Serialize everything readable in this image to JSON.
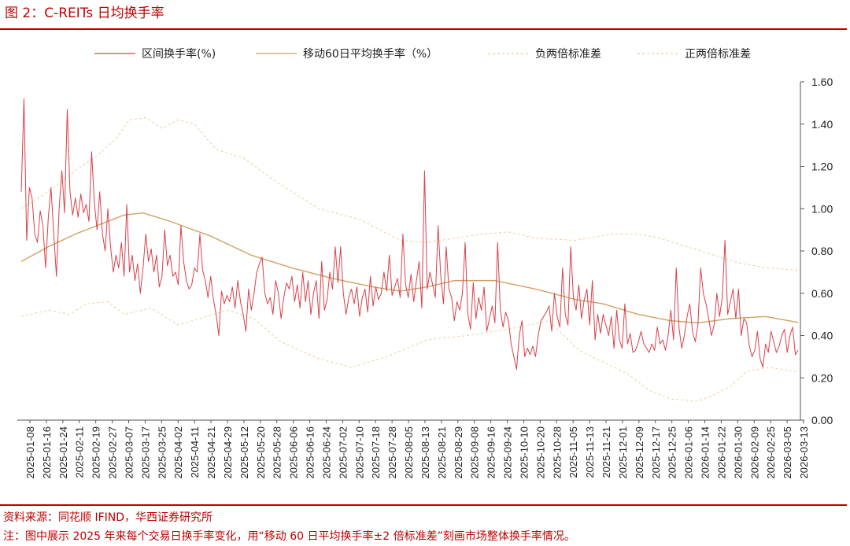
{
  "header": {
    "title": "图 2：C-REITs 日均换手率"
  },
  "footer": {
    "source": "资料来源：同花顺 IFIND，华西证券研究所",
    "note": "注：图中展示 2025 年来每个交易日换手率变化，用“移动 60 日平均换手率±2 倍标准差”刻画市场整体换手率情况。"
  },
  "colors": {
    "accent": "#c00000",
    "turnover": "#d9414a",
    "ma60": "#d1a062",
    "band": "#e8cf9e"
  },
  "chart_data": {
    "type": "line",
    "title": "",
    "xlabel": "",
    "ylabel": "",
    "ylim": [
      0,
      1.6
    ],
    "yticks": [
      "0.00",
      "0.20",
      "0.40",
      "0.60",
      "0.80",
      "1.00",
      "1.20",
      "1.40",
      "1.60"
    ],
    "grid": false,
    "legend_position": "top",
    "x_tick_labels": [
      "2025-01-08",
      "2025-01-16",
      "2025-01-24",
      "2025-02-11",
      "2025-02-19",
      "2025-02-27",
      "2025-03-07",
      "2025-03-17",
      "2025-03-25",
      "2025-04-02",
      "2025-04-11",
      "2025-04-21",
      "2025-04-29",
      "2025-05-12",
      "2025-05-20",
      "2025-05-28",
      "2025-06-06",
      "2025-06-16",
      "2025-06-24",
      "2025-07-02",
      "2025-07-10",
      "2025-07-18",
      "2025-07-28",
      "2025-08-05",
      "2025-08-13",
      "2025-08-21",
      "2025-08-29",
      "2025-09-08",
      "2025-09-16",
      "2025-09-24",
      "2025-10-10",
      "2025-10-20",
      "2025-10-28",
      "2025-11-05",
      "2025-11-13",
      "2025-11-21",
      "2025-12-01",
      "2025-12-09",
      "2025-12-17",
      "2025-12-25",
      "2026-01-06",
      "2026-01-14",
      "2026-01-22",
      "2026-01-30",
      "2026-02-09",
      "2026-02-25",
      "2026-03-05",
      "2026-03-13"
    ],
    "series": [
      {
        "name": "区间换手率(%)",
        "style": "solid",
        "values": [
          1.08,
          1.52,
          0.85,
          1.1,
          1.05,
          0.88,
          0.84,
          0.99,
          0.92,
          0.72,
          0.96,
          1.1,
          0.88,
          0.68,
          1.0,
          1.18,
          0.98,
          1.47,
          1.08,
          0.97,
          1.05,
          0.96,
          1.07,
          0.98,
          1.02,
          0.94,
          1.27,
          1.03,
          0.9,
          1.08,
          0.88,
          0.8,
          1.0,
          0.82,
          0.7,
          0.78,
          0.72,
          0.84,
          0.68,
          1.02,
          0.7,
          0.78,
          0.66,
          0.74,
          0.6,
          0.72,
          0.88,
          0.75,
          0.81,
          0.7,
          0.78,
          0.63,
          0.68,
          0.9,
          0.73,
          0.78,
          0.68,
          0.7,
          0.64,
          0.92,
          0.75,
          0.66,
          0.62,
          0.64,
          0.72,
          0.7,
          0.88,
          0.71,
          0.66,
          0.58,
          0.68,
          0.57,
          0.5,
          0.4,
          0.61,
          0.55,
          0.59,
          0.56,
          0.63,
          0.53,
          0.66,
          0.56,
          0.5,
          0.42,
          0.62,
          0.52,
          0.6,
          0.7,
          0.74,
          0.77,
          0.6,
          0.55,
          0.58,
          0.5,
          0.66,
          0.6,
          0.48,
          0.58,
          0.65,
          0.62,
          0.68,
          0.56,
          0.64,
          0.53,
          0.7,
          0.56,
          0.66,
          0.5,
          0.6,
          0.66,
          0.48,
          0.75,
          0.52,
          0.57,
          0.7,
          0.62,
          0.82,
          0.65,
          0.82,
          0.6,
          0.5,
          0.58,
          0.62,
          0.55,
          0.63,
          0.49,
          0.58,
          0.62,
          0.51,
          0.68,
          0.54,
          0.63,
          0.57,
          0.6,
          0.7,
          0.61,
          0.78,
          0.59,
          0.63,
          0.67,
          0.58,
          0.88,
          0.64,
          0.58,
          0.69,
          0.56,
          0.66,
          0.75,
          0.53,
          1.18,
          0.62,
          0.7,
          0.64,
          0.58,
          0.92,
          0.68,
          0.55,
          0.82,
          0.62,
          0.58,
          0.47,
          0.56,
          0.52,
          0.6,
          0.84,
          0.5,
          0.43,
          0.65,
          0.48,
          0.58,
          0.52,
          0.63,
          0.42,
          0.48,
          0.54,
          0.46,
          0.84,
          0.52,
          0.44,
          0.51,
          0.47,
          0.36,
          0.3,
          0.24,
          0.4,
          0.47,
          0.3,
          0.34,
          0.31,
          0.35,
          0.3,
          0.4,
          0.47,
          0.49,
          0.51,
          0.54,
          0.42,
          0.6,
          0.49,
          0.44,
          0.72,
          0.5,
          0.45,
          0.82,
          0.58,
          0.52,
          0.64,
          0.48,
          0.57,
          0.62,
          0.45,
          0.66,
          0.38,
          0.5,
          0.41,
          0.5,
          0.45,
          0.4,
          0.49,
          0.34,
          0.52,
          0.38,
          0.34,
          0.55,
          0.36,
          0.41,
          0.32,
          0.33,
          0.37,
          0.42,
          0.36,
          0.34,
          0.32,
          0.36,
          0.33,
          0.44,
          0.36,
          0.38,
          0.33,
          0.4,
          0.52,
          0.38,
          0.72,
          0.44,
          0.34,
          0.4,
          0.49,
          0.55,
          0.42,
          0.37,
          0.45,
          0.72,
          0.6,
          0.55,
          0.48,
          0.4,
          0.45,
          0.6,
          0.49,
          0.58,
          0.85,
          0.5,
          0.56,
          0.62,
          0.48,
          0.62,
          0.4,
          0.48,
          0.46,
          0.35,
          0.3,
          0.33,
          0.42,
          0.29,
          0.25,
          0.36,
          0.32,
          0.42,
          0.37,
          0.32,
          0.35,
          0.4,
          0.43,
          0.32,
          0.4,
          0.44,
          0.31,
          0.33
        ]
      },
      {
        "name": "移动60日平均换手率（%）",
        "style": "solid",
        "keypoints": [
          [
            0,
            0.75
          ],
          [
            10,
            0.82
          ],
          [
            20,
            0.88
          ],
          [
            30,
            0.93
          ],
          [
            38,
            0.97
          ],
          [
            45,
            0.98
          ],
          [
            55,
            0.94
          ],
          [
            70,
            0.87
          ],
          [
            85,
            0.78
          ],
          [
            100,
            0.72
          ],
          [
            115,
            0.67
          ],
          [
            130,
            0.63
          ],
          [
            140,
            0.61
          ],
          [
            150,
            0.63
          ],
          [
            160,
            0.66
          ],
          [
            175,
            0.66
          ],
          [
            190,
            0.62
          ],
          [
            205,
            0.57
          ],
          [
            215,
            0.55
          ],
          [
            228,
            0.5
          ],
          [
            240,
            0.47
          ],
          [
            250,
            0.46
          ],
          [
            262,
            0.48
          ],
          [
            275,
            0.49
          ],
          [
            288,
            0.46
          ],
          [
            296,
            0.45
          ]
        ]
      },
      {
        "name": "负两倍标准差",
        "style": "dashed",
        "keypoints": [
          [
            0,
            1.0
          ],
          [
            10,
            1.08
          ],
          [
            20,
            1.18
          ],
          [
            28,
            1.25
          ],
          [
            35,
            1.33
          ],
          [
            40,
            1.42
          ],
          [
            46,
            1.43
          ],
          [
            52,
            1.38
          ],
          [
            58,
            1.42
          ],
          [
            64,
            1.4
          ],
          [
            72,
            1.28
          ],
          [
            82,
            1.24
          ],
          [
            95,
            1.12
          ],
          [
            110,
            1.0
          ],
          [
            125,
            0.95
          ],
          [
            140,
            0.85
          ],
          [
            150,
            0.84
          ],
          [
            160,
            0.86
          ],
          [
            170,
            0.88
          ],
          [
            180,
            0.89
          ],
          [
            190,
            0.86
          ],
          [
            205,
            0.85
          ],
          [
            218,
            0.88
          ],
          [
            228,
            0.88
          ],
          [
            236,
            0.86
          ],
          [
            246,
            0.82
          ],
          [
            256,
            0.78
          ],
          [
            266,
            0.74
          ],
          [
            276,
            0.72
          ],
          [
            286,
            0.71
          ],
          [
            296,
            0.7
          ]
        ]
      },
      {
        "name": "正两倍标准差",
        "style": "dashed",
        "keypoints": [
          [
            0,
            0.49
          ],
          [
            10,
            0.52
          ],
          [
            18,
            0.5
          ],
          [
            24,
            0.55
          ],
          [
            32,
            0.56
          ],
          [
            38,
            0.5
          ],
          [
            48,
            0.53
          ],
          [
            58,
            0.45
          ],
          [
            66,
            0.48
          ],
          [
            76,
            0.52
          ],
          [
            86,
            0.48
          ],
          [
            96,
            0.37
          ],
          [
            110,
            0.29
          ],
          [
            122,
            0.25
          ],
          [
            135,
            0.3
          ],
          [
            150,
            0.38
          ],
          [
            165,
            0.4
          ],
          [
            180,
            0.43
          ],
          [
            195,
            0.47
          ],
          [
            206,
            0.33
          ],
          [
            214,
            0.28
          ],
          [
            224,
            0.22
          ],
          [
            232,
            0.14
          ],
          [
            240,
            0.1
          ],
          [
            250,
            0.09
          ],
          [
            256,
            0.12
          ],
          [
            262,
            0.16
          ],
          [
            268,
            0.23
          ],
          [
            276,
            0.25
          ],
          [
            286,
            0.23
          ],
          [
            296,
            0.21
          ]
        ]
      }
    ]
  }
}
